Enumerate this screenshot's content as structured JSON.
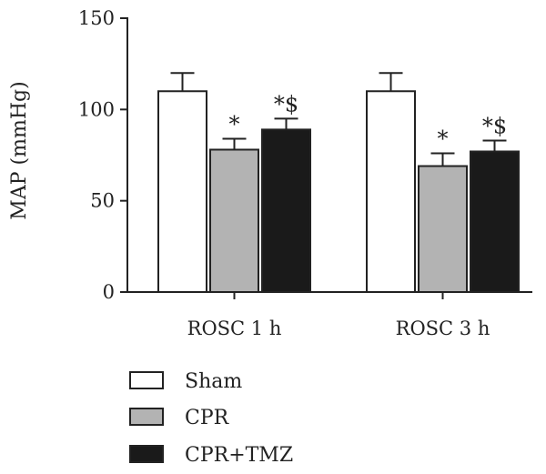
{
  "chart_data": {
    "type": "bar",
    "title": "",
    "xlabel": "",
    "ylabel": "MAP (mmHg)",
    "ylim": [
      0,
      150
    ],
    "yticks": [
      0,
      50,
      100,
      150
    ],
    "categories": [
      "ROSC 1 h",
      "ROSC 3 h"
    ],
    "series": [
      {
        "name": "Sham",
        "color": "#ffffff",
        "values": [
          110,
          110
        ],
        "errors": [
          10,
          10
        ],
        "annotations": [
          "",
          ""
        ]
      },
      {
        "name": "CPR",
        "color": "#b3b3b3",
        "values": [
          78,
          69
        ],
        "errors": [
          6,
          7
        ],
        "annotations": [
          "*",
          "*"
        ]
      },
      {
        "name": "CPR+TMZ",
        "color": "#1a1a1a",
        "values": [
          89,
          77
        ],
        "errors": [
          6,
          6
        ],
        "annotations": [
          "*$",
          "*$"
        ]
      }
    ],
    "legend_position": "bottom-left",
    "grid": false
  }
}
